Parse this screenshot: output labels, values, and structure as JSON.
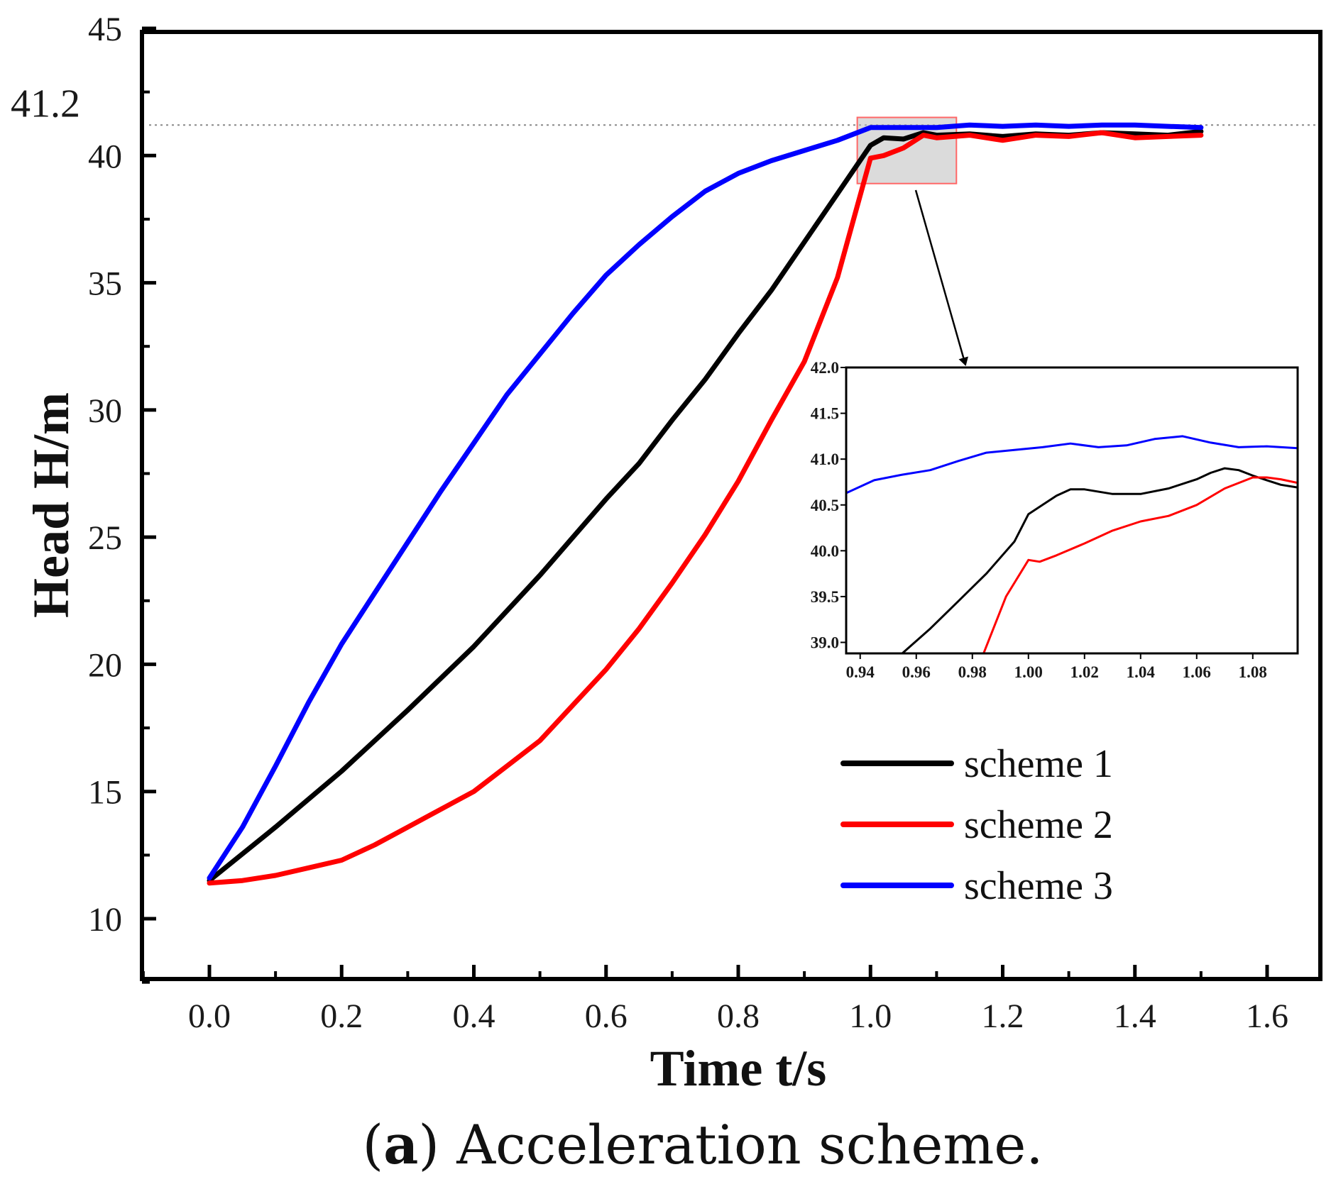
{
  "chart_data": {
    "type": "line",
    "title": "",
    "xlabel": "Time t/s",
    "ylabel": "Head H/m",
    "xlim": [
      -0.1,
      1.68
    ],
    "ylim": [
      7.5,
      45
    ],
    "xticks": [
      "0.0",
      "0.2",
      "0.4",
      "0.6",
      "0.8",
      "1.0",
      "1.2",
      "1.4",
      "1.6"
    ],
    "xtick_values": [
      0.0,
      0.2,
      0.4,
      0.6,
      0.8,
      1.0,
      1.2,
      1.4,
      1.6
    ],
    "yticks": [
      "10",
      "15",
      "20",
      "25",
      "30",
      "35",
      "40",
      "45"
    ],
    "ytick_values": [
      10,
      15,
      20,
      25,
      30,
      35,
      40,
      45
    ],
    "reference_line": {
      "value": 41.2,
      "label": "41.2",
      "style": "dotted"
    },
    "zoom_box": {
      "x_range": [
        0.98,
        1.13
      ],
      "y_range": [
        38.9,
        41.5
      ]
    },
    "legend_position": "bottom-right",
    "series": [
      {
        "name": "scheme 1",
        "color": "#000000",
        "x": [
          0.0,
          0.1,
          0.2,
          0.3,
          0.4,
          0.5,
          0.6,
          0.65,
          0.7,
          0.75,
          0.8,
          0.85,
          0.9,
          0.95,
          1.0,
          1.02,
          1.05,
          1.08,
          1.1,
          1.15,
          1.2,
          1.25,
          1.3,
          1.35,
          1.4,
          1.45,
          1.5
        ],
        "y": [
          11.5,
          13.6,
          15.8,
          18.2,
          20.7,
          23.5,
          26.5,
          27.9,
          29.6,
          31.2,
          33.0,
          34.7,
          36.6,
          38.5,
          40.4,
          40.7,
          40.65,
          40.9,
          40.8,
          40.85,
          40.75,
          40.85,
          40.8,
          40.9,
          40.85,
          40.8,
          40.95
        ]
      },
      {
        "name": "scheme 2",
        "color": "#ff0000",
        "x": [
          0.0,
          0.05,
          0.1,
          0.15,
          0.2,
          0.25,
          0.3,
          0.35,
          0.4,
          0.45,
          0.5,
          0.55,
          0.6,
          0.65,
          0.7,
          0.75,
          0.8,
          0.85,
          0.9,
          0.95,
          1.0,
          1.02,
          1.05,
          1.08,
          1.1,
          1.15,
          1.2,
          1.25,
          1.3,
          1.35,
          1.4,
          1.45,
          1.5
        ],
        "y": [
          11.4,
          11.5,
          11.7,
          12.0,
          12.3,
          12.9,
          13.6,
          14.3,
          15.0,
          16.0,
          17.0,
          18.4,
          19.8,
          21.4,
          23.2,
          25.1,
          27.2,
          29.6,
          31.9,
          35.2,
          39.9,
          40.0,
          40.3,
          40.8,
          40.7,
          40.8,
          40.6,
          40.8,
          40.75,
          40.9,
          40.7,
          40.75,
          40.8
        ]
      },
      {
        "name": "scheme 3",
        "color": "#0000ff",
        "x": [
          0.0,
          0.05,
          0.1,
          0.15,
          0.2,
          0.25,
          0.3,
          0.35,
          0.4,
          0.45,
          0.5,
          0.55,
          0.6,
          0.65,
          0.7,
          0.75,
          0.8,
          0.85,
          0.9,
          0.95,
          1.0,
          1.05,
          1.1,
          1.15,
          1.2,
          1.25,
          1.3,
          1.35,
          1.4,
          1.45,
          1.5
        ],
        "y": [
          11.6,
          13.6,
          16.0,
          18.5,
          20.8,
          22.8,
          24.8,
          26.8,
          28.7,
          30.6,
          32.2,
          33.8,
          35.3,
          36.5,
          37.6,
          38.6,
          39.3,
          39.8,
          40.2,
          40.6,
          41.1,
          41.1,
          41.1,
          41.2,
          41.15,
          41.2,
          41.15,
          41.2,
          41.2,
          41.15,
          41.1
        ]
      }
    ],
    "inset": {
      "xlim": [
        0.935,
        1.096
      ],
      "ylim": [
        38.88,
        42.0
      ],
      "xticks": [
        "0.94",
        "0.96",
        "0.98",
        "1.00",
        "1.02",
        "1.04",
        "1.06",
        "1.08"
      ],
      "xtick_values": [
        0.94,
        0.96,
        0.98,
        1.0,
        1.02,
        1.04,
        1.06,
        1.08
      ],
      "yticks": [
        "39.0",
        "39.5",
        "40.0",
        "40.5",
        "41.0",
        "41.5",
        "42.0"
      ],
      "ytick_values": [
        39.0,
        39.5,
        40.0,
        40.5,
        41.0,
        41.5,
        42.0
      ],
      "series": [
        {
          "name": "scheme 1",
          "color": "#000000",
          "x": [
            0.955,
            0.965,
            0.975,
            0.985,
            0.995,
            1.0,
            1.005,
            1.01,
            1.015,
            1.02,
            1.03,
            1.04,
            1.05,
            1.06,
            1.065,
            1.07,
            1.075,
            1.08,
            1.085,
            1.09,
            1.096
          ],
          "y": [
            38.88,
            39.15,
            39.45,
            39.75,
            40.1,
            40.4,
            40.5,
            40.6,
            40.67,
            40.67,
            40.62,
            40.62,
            40.68,
            40.78,
            40.85,
            40.9,
            40.88,
            40.82,
            40.77,
            40.72,
            40.69
          ]
        },
        {
          "name": "scheme 2",
          "color": "#ff0000",
          "x": [
            0.984,
            0.992,
            1.0,
            1.004,
            1.01,
            1.02,
            1.03,
            1.04,
            1.05,
            1.06,
            1.07,
            1.08,
            1.085,
            1.09,
            1.096
          ],
          "y": [
            38.88,
            39.5,
            39.9,
            39.88,
            39.95,
            40.08,
            40.22,
            40.32,
            40.38,
            40.5,
            40.68,
            40.8,
            40.8,
            40.78,
            40.74
          ]
        },
        {
          "name": "scheme 3",
          "color": "#0000ff",
          "x": [
            0.935,
            0.945,
            0.955,
            0.965,
            0.975,
            0.985,
            0.995,
            1.005,
            1.015,
            1.025,
            1.035,
            1.045,
            1.055,
            1.065,
            1.075,
            1.085,
            1.096
          ],
          "y": [
            40.63,
            40.77,
            40.83,
            40.88,
            40.98,
            41.07,
            41.1,
            41.13,
            41.17,
            41.13,
            41.15,
            41.22,
            41.25,
            41.18,
            41.13,
            41.14,
            41.12
          ]
        }
      ]
    }
  },
  "caption": {
    "open": "(",
    "label": "a",
    "text": ") Acceleration scheme."
  }
}
